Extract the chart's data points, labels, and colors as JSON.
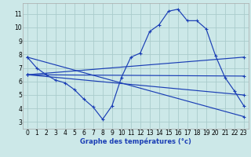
{
  "xlabel": "Graphe des températures (°c)",
  "bg_color": "#cce8e8",
  "grid_color": "#aacccc",
  "line_color": "#1a3eb5",
  "ylim": [
    2.5,
    11.8
  ],
  "xlim": [
    -0.5,
    23.5
  ],
  "y_ticks": [
    3,
    4,
    5,
    6,
    7,
    8,
    9,
    10,
    11
  ],
  "curve1": [
    7.8,
    7.0,
    6.5,
    6.1,
    5.9,
    5.4,
    4.7,
    4.1,
    3.2,
    4.2,
    6.3,
    7.8,
    8.1,
    9.7,
    10.2,
    11.2,
    11.35,
    10.5,
    10.5,
    9.9,
    7.9,
    6.3,
    5.3,
    4.2
  ],
  "line_down": [
    [
      0,
      7.8
    ],
    [
      23,
      3.4
    ]
  ],
  "line_up": [
    [
      0,
      6.5
    ],
    [
      23,
      7.8
    ]
  ],
  "line_flat1": [
    [
      0,
      6.5
    ],
    [
      23,
      6.4
    ]
  ],
  "line_flat2": [
    [
      0,
      6.5
    ],
    [
      23,
      5.0
    ]
  ]
}
